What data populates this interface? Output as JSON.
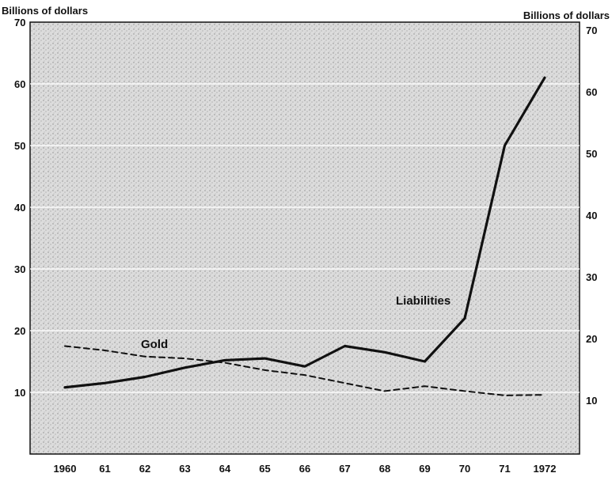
{
  "chart_data": {
    "type": "line",
    "title": "",
    "xlabel": "",
    "ylabel_left": "Billions of dollars",
    "ylabel_right": "Billions of dollars",
    "ylim": [
      0,
      70
    ],
    "yticks": [
      10,
      20,
      30,
      40,
      50,
      60,
      70
    ],
    "categories": [
      "1960",
      "61",
      "62",
      "63",
      "64",
      "65",
      "66",
      "67",
      "68",
      "69",
      "70",
      "71",
      "1972"
    ],
    "x": [
      1960,
      1961,
      1962,
      1963,
      1964,
      1965,
      1966,
      1967,
      1968,
      1969,
      1970,
      1971,
      1972
    ],
    "grid": true,
    "legend": "none",
    "series": [
      {
        "name": "Liabilities",
        "style": "solid",
        "color": "#111111",
        "values": [
          10.8,
          11.5,
          12.5,
          14,
          15.2,
          15.5,
          14.2,
          17.5,
          16.5,
          15,
          22,
          50,
          61
        ]
      },
      {
        "name": "Gold",
        "style": "dashed",
        "color": "#111111",
        "values": [
          17.5,
          16.8,
          15.8,
          15.5,
          14.8,
          13.6,
          12.8,
          11.5,
          10.2,
          11,
          10.2,
          9.5,
          9.6
        ]
      }
    ]
  }
}
